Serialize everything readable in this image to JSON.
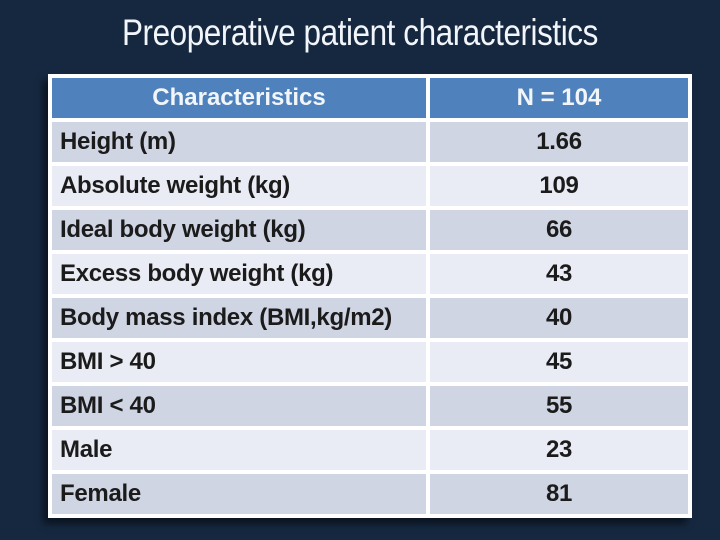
{
  "slide": {
    "title": "Preoperative patient characteristics",
    "colors": {
      "background": "#162840",
      "title_text": "#F2F6FA",
      "header_bg": "#4F81BD",
      "header_text": "#F2F6FA",
      "row_odd": "#D0D5E3",
      "row_even": "#E9ECF4",
      "grid": "#FFFFFF",
      "cell_text": "#1B1B1B"
    }
  },
  "table": {
    "columns": [
      "Characteristics",
      "N = 104"
    ],
    "rows": [
      {
        "label": "Height (m)",
        "value": "1.66"
      },
      {
        "label": "Absolute weight (kg)",
        "value": "109"
      },
      {
        "label": "Ideal body weight (kg)",
        "value": "66"
      },
      {
        "label": "Excess body weight (kg)",
        "value": "43"
      },
      {
        "label": "Body mass index (BMI,kg/m2)",
        "value": "40"
      },
      {
        "label": "BMI > 40",
        "value": "45"
      },
      {
        "label": "BMI < 40",
        "value": "55"
      },
      {
        "label": "Male",
        "value": "23"
      },
      {
        "label": "Female",
        "value": "81"
      }
    ]
  },
  "chart_data": {
    "type": "table",
    "title": "Preoperative patient characteristics",
    "columns": [
      "Characteristics",
      "N = 104"
    ],
    "rows": [
      [
        "Height (m)",
        1.66
      ],
      [
        "Absolute weight (kg)",
        109
      ],
      [
        "Ideal body weight (kg)",
        66
      ],
      [
        "Excess body weight (kg)",
        43
      ],
      [
        "Body mass index (BMI,kg/m2)",
        40
      ],
      [
        "BMI > 40",
        45
      ],
      [
        "BMI < 40",
        55
      ],
      [
        "Male",
        23
      ],
      [
        "Female",
        81
      ]
    ]
  }
}
